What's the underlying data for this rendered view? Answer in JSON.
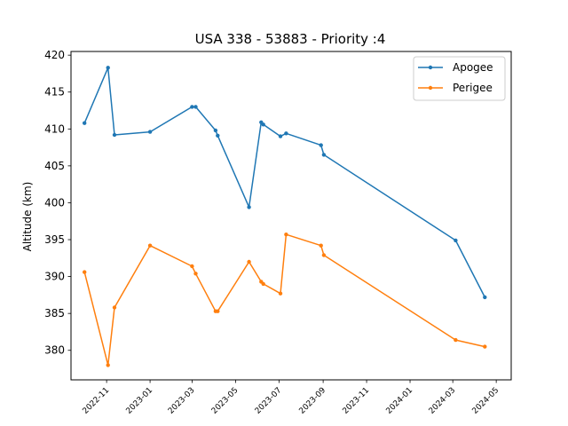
{
  "chart_data": {
    "type": "line",
    "title": "USA 338 - 53883 - Priority :4",
    "xlabel": "",
    "ylabel": "Altitude (km)",
    "xlim": [
      "2022-09-12",
      "2024-05-22"
    ],
    "ylim": [
      376.0,
      420.5
    ],
    "yticks": [
      380,
      385,
      390,
      395,
      400,
      405,
      410,
      415,
      420
    ],
    "xticks": [
      "2022-11",
      "2023-01",
      "2023-03",
      "2023-05",
      "2023-07",
      "2023-09",
      "2023-11",
      "2024-01",
      "2024-03",
      "2024-05"
    ],
    "grid": false,
    "legend_position": "top-right",
    "series": [
      {
        "name": "Apogee",
        "color": "#1f77b4",
        "points": [
          {
            "x": "2022-10-01",
            "y": 410.8
          },
          {
            "x": "2022-11-03",
            "y": 418.3
          },
          {
            "x": "2022-11-12",
            "y": 409.2
          },
          {
            "x": "2023-01-01",
            "y": 409.6
          },
          {
            "x": "2023-03-01",
            "y": 413.0
          },
          {
            "x": "2023-03-06",
            "y": 413.0
          },
          {
            "x": "2023-04-03",
            "y": 409.8
          },
          {
            "x": "2023-04-06",
            "y": 409.1
          },
          {
            "x": "2023-05-20",
            "y": 399.4
          },
          {
            "x": "2023-06-06",
            "y": 410.9
          },
          {
            "x": "2023-06-09",
            "y": 410.6
          },
          {
            "x": "2023-07-03",
            "y": 409.0
          },
          {
            "x": "2023-07-11",
            "y": 409.4
          },
          {
            "x": "2023-08-29",
            "y": 407.8
          },
          {
            "x": "2023-09-02",
            "y": 406.5
          },
          {
            "x": "2024-03-05",
            "y": 394.9
          },
          {
            "x": "2024-04-15",
            "y": 387.2
          }
        ]
      },
      {
        "name": "Perigee",
        "color": "#ff7f0e",
        "points": [
          {
            "x": "2022-10-01",
            "y": 390.6
          },
          {
            "x": "2022-11-03",
            "y": 378.0
          },
          {
            "x": "2022-11-12",
            "y": 385.8
          },
          {
            "x": "2023-01-01",
            "y": 394.2
          },
          {
            "x": "2023-03-01",
            "y": 391.4
          },
          {
            "x": "2023-03-06",
            "y": 390.4
          },
          {
            "x": "2023-04-03",
            "y": 385.3
          },
          {
            "x": "2023-04-06",
            "y": 385.3
          },
          {
            "x": "2023-05-20",
            "y": 392.0
          },
          {
            "x": "2023-06-06",
            "y": 389.3
          },
          {
            "x": "2023-06-09",
            "y": 389.0
          },
          {
            "x": "2023-07-03",
            "y": 387.7
          },
          {
            "x": "2023-07-11",
            "y": 395.7
          },
          {
            "x": "2023-08-29",
            "y": 394.2
          },
          {
            "x": "2023-09-02",
            "y": 392.9
          },
          {
            "x": "2024-03-05",
            "y": 381.4
          },
          {
            "x": "2024-04-15",
            "y": 380.5
          }
        ]
      }
    ]
  }
}
